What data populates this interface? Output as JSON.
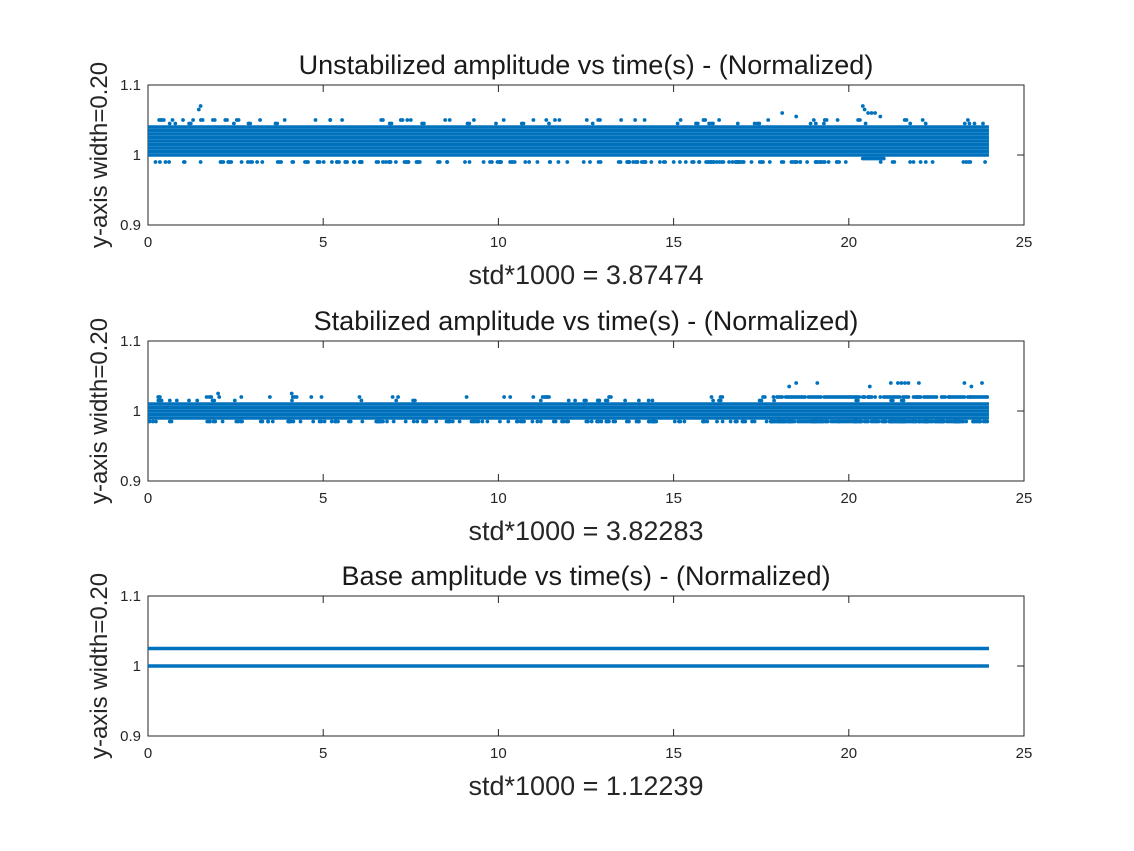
{
  "figure": {
    "background": "#ffffff",
    "marker_color": "#0072bd"
  },
  "chart_data": [
    {
      "type": "scatter",
      "title": "Unstabilized amplitude vs time(s) - (Normalized)",
      "xlabel": "std*1000 = 3.87474",
      "ylabel": "y-axis width=0.20",
      "xlim": [
        0,
        25
      ],
      "ylim": [
        0.9,
        1.1
      ],
      "xticks": [
        "0",
        "5",
        "10",
        "15",
        "20",
        "25"
      ],
      "yticks": [
        "0.9",
        "1",
        "1.1"
      ],
      "grid": false,
      "series": [
        {
          "x_range": [
            0,
            24
          ],
          "dense_levels": [
            1.04,
            1.035,
            1.03,
            1.025,
            1.02,
            1.015,
            1.01,
            1.005,
            1.0
          ],
          "sparse_levels": [
            0.99,
            1.045,
            1.05
          ],
          "outliers": [
            {
              "x": 1.5,
              "y": 1.07
            },
            {
              "x": 1.45,
              "y": 1.065
            },
            {
              "x": 20.4,
              "y": 1.07
            },
            {
              "x": 20.45,
              "y": 1.065
            },
            {
              "x": 20.55,
              "y": 1.06
            },
            {
              "x": 20.65,
              "y": 1.06
            },
            {
              "x": 20.75,
              "y": 1.06
            },
            {
              "x": 18.1,
              "y": 1.06
            },
            {
              "x": 18.5,
              "y": 1.055
            },
            {
              "x": 20.9,
              "y": 1.055
            },
            {
              "x": 0.7,
              "y": 1.05
            },
            {
              "x": 1.0,
              "y": 1.05
            },
            {
              "x": 3.2,
              "y": 1.05
            },
            {
              "x": 3.9,
              "y": 1.05
            },
            {
              "x": 5.2,
              "y": 1.05
            },
            {
              "x": 7.4,
              "y": 1.05
            },
            {
              "x": 9.3,
              "y": 1.05
            },
            {
              "x": 11.0,
              "y": 1.05
            },
            {
              "x": 13.9,
              "y": 1.05
            },
            {
              "x": 15.2,
              "y": 1.05
            },
            {
              "x": 17.7,
              "y": 1.05
            },
            {
              "x": 19.0,
              "y": 1.05
            },
            {
              "x": 23.4,
              "y": 1.05
            }
          ],
          "dip_segment": {
            "x_start": 20.4,
            "x_end": 21.0,
            "y": 0.995
          }
        }
      ]
    },
    {
      "type": "scatter",
      "title": "Stabilized amplitude vs time(s) - (Normalized)",
      "xlabel": "std*1000 = 3.82283",
      "ylabel": "y-axis width=0.20",
      "xlim": [
        0,
        25
      ],
      "ylim": [
        0.9,
        1.1
      ],
      "xticks": [
        "0",
        "5",
        "10",
        "15",
        "20",
        "25"
      ],
      "yticks": [
        "0.9",
        "1",
        "1.1"
      ],
      "grid": false,
      "series": [
        {
          "x_range": [
            0,
            24
          ],
          "dense_levels": [
            1.01,
            1.005,
            1.0,
            0.995,
            0.99
          ],
          "sparse_levels": [
            0.985,
            1.015,
            1.02
          ],
          "late_band": {
            "x_start": 17.8,
            "x_end": 24,
            "levels": [
              1.02,
              0.985
            ]
          },
          "outliers": [
            {
              "x": 18.5,
              "y": 1.04
            },
            {
              "x": 19.1,
              "y": 1.04
            },
            {
              "x": 21.2,
              "y": 1.04
            },
            {
              "x": 21.4,
              "y": 1.04
            },
            {
              "x": 21.5,
              "y": 1.04
            },
            {
              "x": 21.6,
              "y": 1.04
            },
            {
              "x": 21.7,
              "y": 1.04
            },
            {
              "x": 22.0,
              "y": 1.04
            },
            {
              "x": 23.3,
              "y": 1.04
            },
            {
              "x": 23.8,
              "y": 1.04
            },
            {
              "x": 18.3,
              "y": 1.035
            },
            {
              "x": 20.6,
              "y": 1.035
            },
            {
              "x": 23.5,
              "y": 1.035
            },
            {
              "x": 2.0,
              "y": 1.025
            },
            {
              "x": 4.1,
              "y": 1.025
            }
          ]
        }
      ]
    },
    {
      "type": "scatter",
      "title": "Base amplitude vs time(s) - (Normalized)",
      "xlabel": "std*1000 = 1.12239",
      "ylabel": "y-axis width=0.20",
      "xlim": [
        0,
        25
      ],
      "ylim": [
        0.9,
        1.1
      ],
      "xticks": [
        "0",
        "5",
        "10",
        "15",
        "20",
        "25"
      ],
      "yticks": [
        "0.9",
        "1",
        "1.1"
      ],
      "grid": false,
      "series": [
        {
          "x_range": [
            0,
            24
          ],
          "dense_levels": [
            1.025,
            1.0
          ],
          "sparse_levels": [],
          "outliers": []
        }
      ]
    }
  ]
}
